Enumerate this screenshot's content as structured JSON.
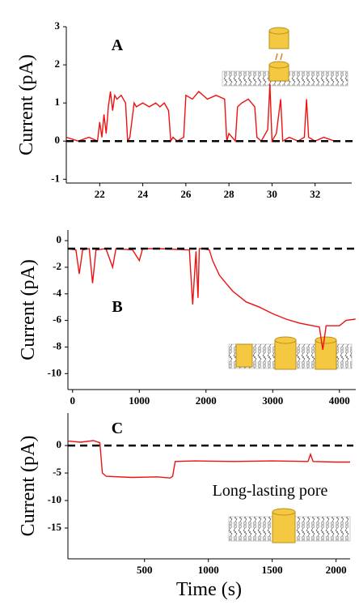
{
  "chart_data": [
    {
      "type": "line",
      "label": "A",
      "ylabel": "Current (pA)",
      "color": "#ee1111",
      "xlim": [
        20.45,
        33.7
      ],
      "ylim": [
        -1.1,
        3
      ],
      "xticks": [
        22,
        24,
        26,
        28,
        30,
        32
      ],
      "yticks": [
        -1,
        0,
        1,
        2,
        3
      ],
      "baseline": 0,
      "x": [
        20.45,
        21.0,
        21.5,
        21.9,
        22.0,
        22.1,
        22.2,
        22.3,
        22.4,
        22.5,
        22.6,
        22.7,
        22.8,
        23.0,
        23.2,
        23.3,
        23.4,
        23.6,
        23.7,
        24.0,
        24.3,
        24.6,
        24.8,
        25.0,
        25.2,
        25.3,
        25.4,
        25.6,
        25.9,
        26.0,
        26.3,
        26.6,
        27.0,
        27.4,
        27.8,
        27.9,
        28.0,
        28.3,
        28.4,
        28.6,
        28.9,
        29.2,
        29.3,
        29.5,
        29.8,
        29.9,
        30.0,
        30.2,
        30.4,
        30.5,
        30.8,
        31.2,
        31.5,
        31.6,
        31.7,
        32.0,
        32.4,
        32.9
      ],
      "values": [
        0.1,
        0.0,
        0.1,
        0.0,
        0.5,
        0.1,
        0.7,
        0.2,
        0.9,
        1.3,
        0.8,
        1.2,
        1.1,
        1.2,
        1.0,
        0.0,
        0.1,
        1.0,
        0.9,
        1.0,
        0.9,
        1.0,
        0.9,
        1.0,
        0.8,
        0.0,
        0.1,
        0.0,
        0.1,
        1.2,
        1.1,
        1.3,
        1.1,
        1.2,
        1.1,
        0.0,
        0.2,
        0.0,
        0.9,
        1.0,
        1.1,
        0.9,
        0.1,
        0.0,
        0.3,
        1.5,
        0.0,
        0.2,
        1.1,
        0.0,
        0.1,
        0.0,
        0.1,
        1.1,
        0.1,
        0.0,
        0.1,
        0.0
      ]
    },
    {
      "type": "line",
      "label": "B",
      "ylabel": "Current (pA)",
      "color": "#ee1111",
      "xlim": [
        -70,
        4245
      ],
      "ylim": [
        -11.2,
        0.8
      ],
      "xticks": [
        0,
        1000,
        2000,
        3000,
        4000
      ],
      "yticks": [
        0,
        -2,
        -4,
        -6,
        -8,
        -10
      ],
      "baseline": -0.6,
      "x": [
        -70,
        50,
        100,
        150,
        250,
        300,
        350,
        500,
        600,
        650,
        900,
        1000,
        1050,
        1300,
        1750,
        1800,
        1850,
        1880,
        1900,
        1950,
        2050,
        2100,
        2200,
        2300,
        2400,
        2500,
        2600,
        2800,
        3000,
        3200,
        3400,
        3600,
        3700,
        3750,
        3800,
        4000,
        4100,
        4240
      ],
      "values": [
        -0.6,
        -0.7,
        -2.5,
        -0.7,
        -0.6,
        -3.2,
        -0.7,
        -0.6,
        -2.0,
        -0.6,
        -0.7,
        -1.5,
        -0.6,
        -0.6,
        -0.7,
        -4.8,
        -0.8,
        -4.3,
        -0.6,
        -0.6,
        -0.7,
        -1.5,
        -2.6,
        -3.2,
        -3.8,
        -4.2,
        -4.6,
        -5.0,
        -5.5,
        -5.9,
        -6.2,
        -6.4,
        -6.5,
        -8.2,
        -6.4,
        -6.4,
        -6.0,
        -5.9
      ]
    },
    {
      "type": "line",
      "label": "C",
      "ylabel": "Current (pA)",
      "xlabel": "Time (s)",
      "annotation": "Long-lasting pore",
      "color": "#ee1111",
      "xlim": [
        -100,
        2110
      ],
      "ylim": [
        -20.6,
        5.9
      ],
      "xticks": [
        500,
        1000,
        1500,
        2000
      ],
      "yticks": [
        0,
        -5,
        -10,
        -15
      ],
      "baseline": 0,
      "x": [
        -100,
        0,
        100,
        150,
        170,
        200,
        400,
        600,
        700,
        720,
        740,
        900,
        1200,
        1500,
        1780,
        1800,
        1820,
        2000,
        2110
      ],
      "values": [
        0.8,
        0.6,
        0.9,
        0.5,
        -5.0,
        -5.6,
        -5.8,
        -5.7,
        -5.9,
        -5.6,
        -2.9,
        -2.8,
        -2.9,
        -2.8,
        -2.9,
        -1.6,
        -2.9,
        -3.0,
        -3.0
      ]
    }
  ]
}
